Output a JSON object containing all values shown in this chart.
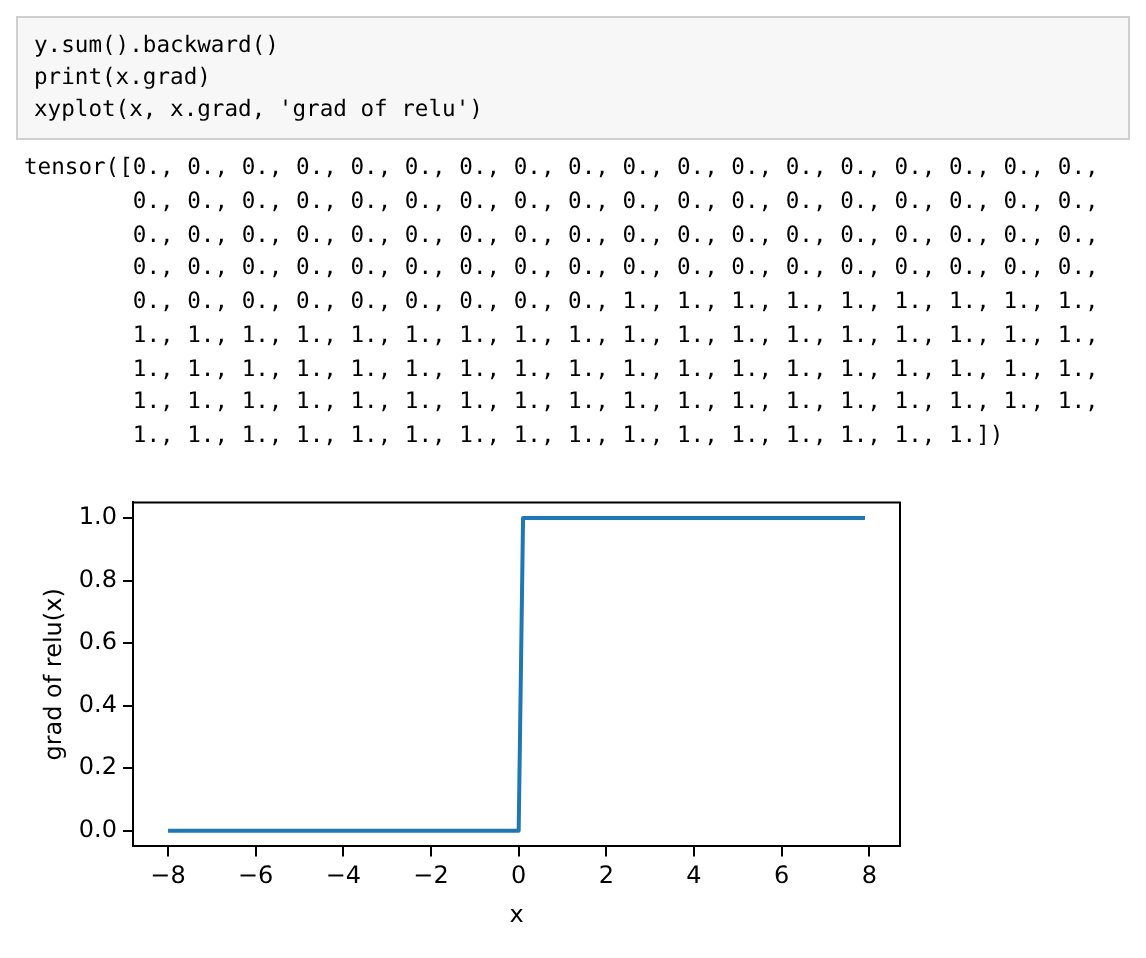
{
  "chart_data": {
    "type": "line",
    "xlabel": "x",
    "ylabel": "grad of relu(x)",
    "x": [
      -8,
      0,
      0.1,
      7.9
    ],
    "series": [
      {
        "color": "#1f77b4",
        "values": [
          0,
          0,
          1,
          1
        ]
      }
    ],
    "xlim": [
      -8.8,
      8.7
    ],
    "ylim": [
      -0.05,
      1.05
    ],
    "xticks": [
      {
        "value": -8,
        "label": "−8"
      },
      {
        "value": -6,
        "label": "−6"
      },
      {
        "value": -4,
        "label": "−4"
      },
      {
        "value": -2,
        "label": "−2"
      },
      0,
      2,
      4,
      6,
      8
    ],
    "yticks": [
      {
        "value": 0,
        "label": "0.0"
      },
      {
        "value": 0.2,
        "label": "0.2"
      },
      {
        "value": 0.4,
        "label": "0.4"
      },
      {
        "value": 0.6,
        "label": "0.6"
      },
      {
        "value": 0.8,
        "label": "0.8"
      },
      {
        "value": 1,
        "label": "1.0"
      }
    ],
    "grid": false,
    "legend": false,
    "marker": "none",
    "line_style": "solid",
    "annotations": [
      "y.sum().backward()\nprint(x.grad)\nxyplot(x, x.grad, 'grad of relu')",
      "tensor([0., 0., 0., 0., 0., 0., 0., 0., 0., 0., 0., 0., 0., 0., 0., 0., 0., 0.,\n        0., 0., 0., 0., 0., 0., 0., 0., 0., 0., 0., 0., 0., 0., 0., 0., 0., 0.,\n        0., 0., 0., 0., 0., 0., 0., 0., 0., 0., 0., 0., 0., 0., 0., 0., 0., 0.,\n        0., 0., 0., 0., 0., 0., 0., 0., 0., 0., 0., 0., 0., 0., 0., 0., 0., 0.,\n        0., 0., 0., 0., 0., 0., 0., 0., 0., 1., 1., 1., 1., 1., 1., 1., 1., 1.,\n        1., 1., 1., 1., 1., 1., 1., 1., 1., 1., 1., 1., 1., 1., 1., 1., 1., 1.,\n        1., 1., 1., 1., 1., 1., 1., 1., 1., 1., 1., 1., 1., 1., 1., 1., 1., 1.,\n        1., 1., 1., 1., 1., 1., 1., 1., 1., 1., 1., 1., 1., 1., 1., 1., 1., 1.,\n        1., 1., 1., 1., 1., 1., 1., 1., 1., 1., 1., 1., 1., 1., 1., 1.])"
    ]
  }
}
